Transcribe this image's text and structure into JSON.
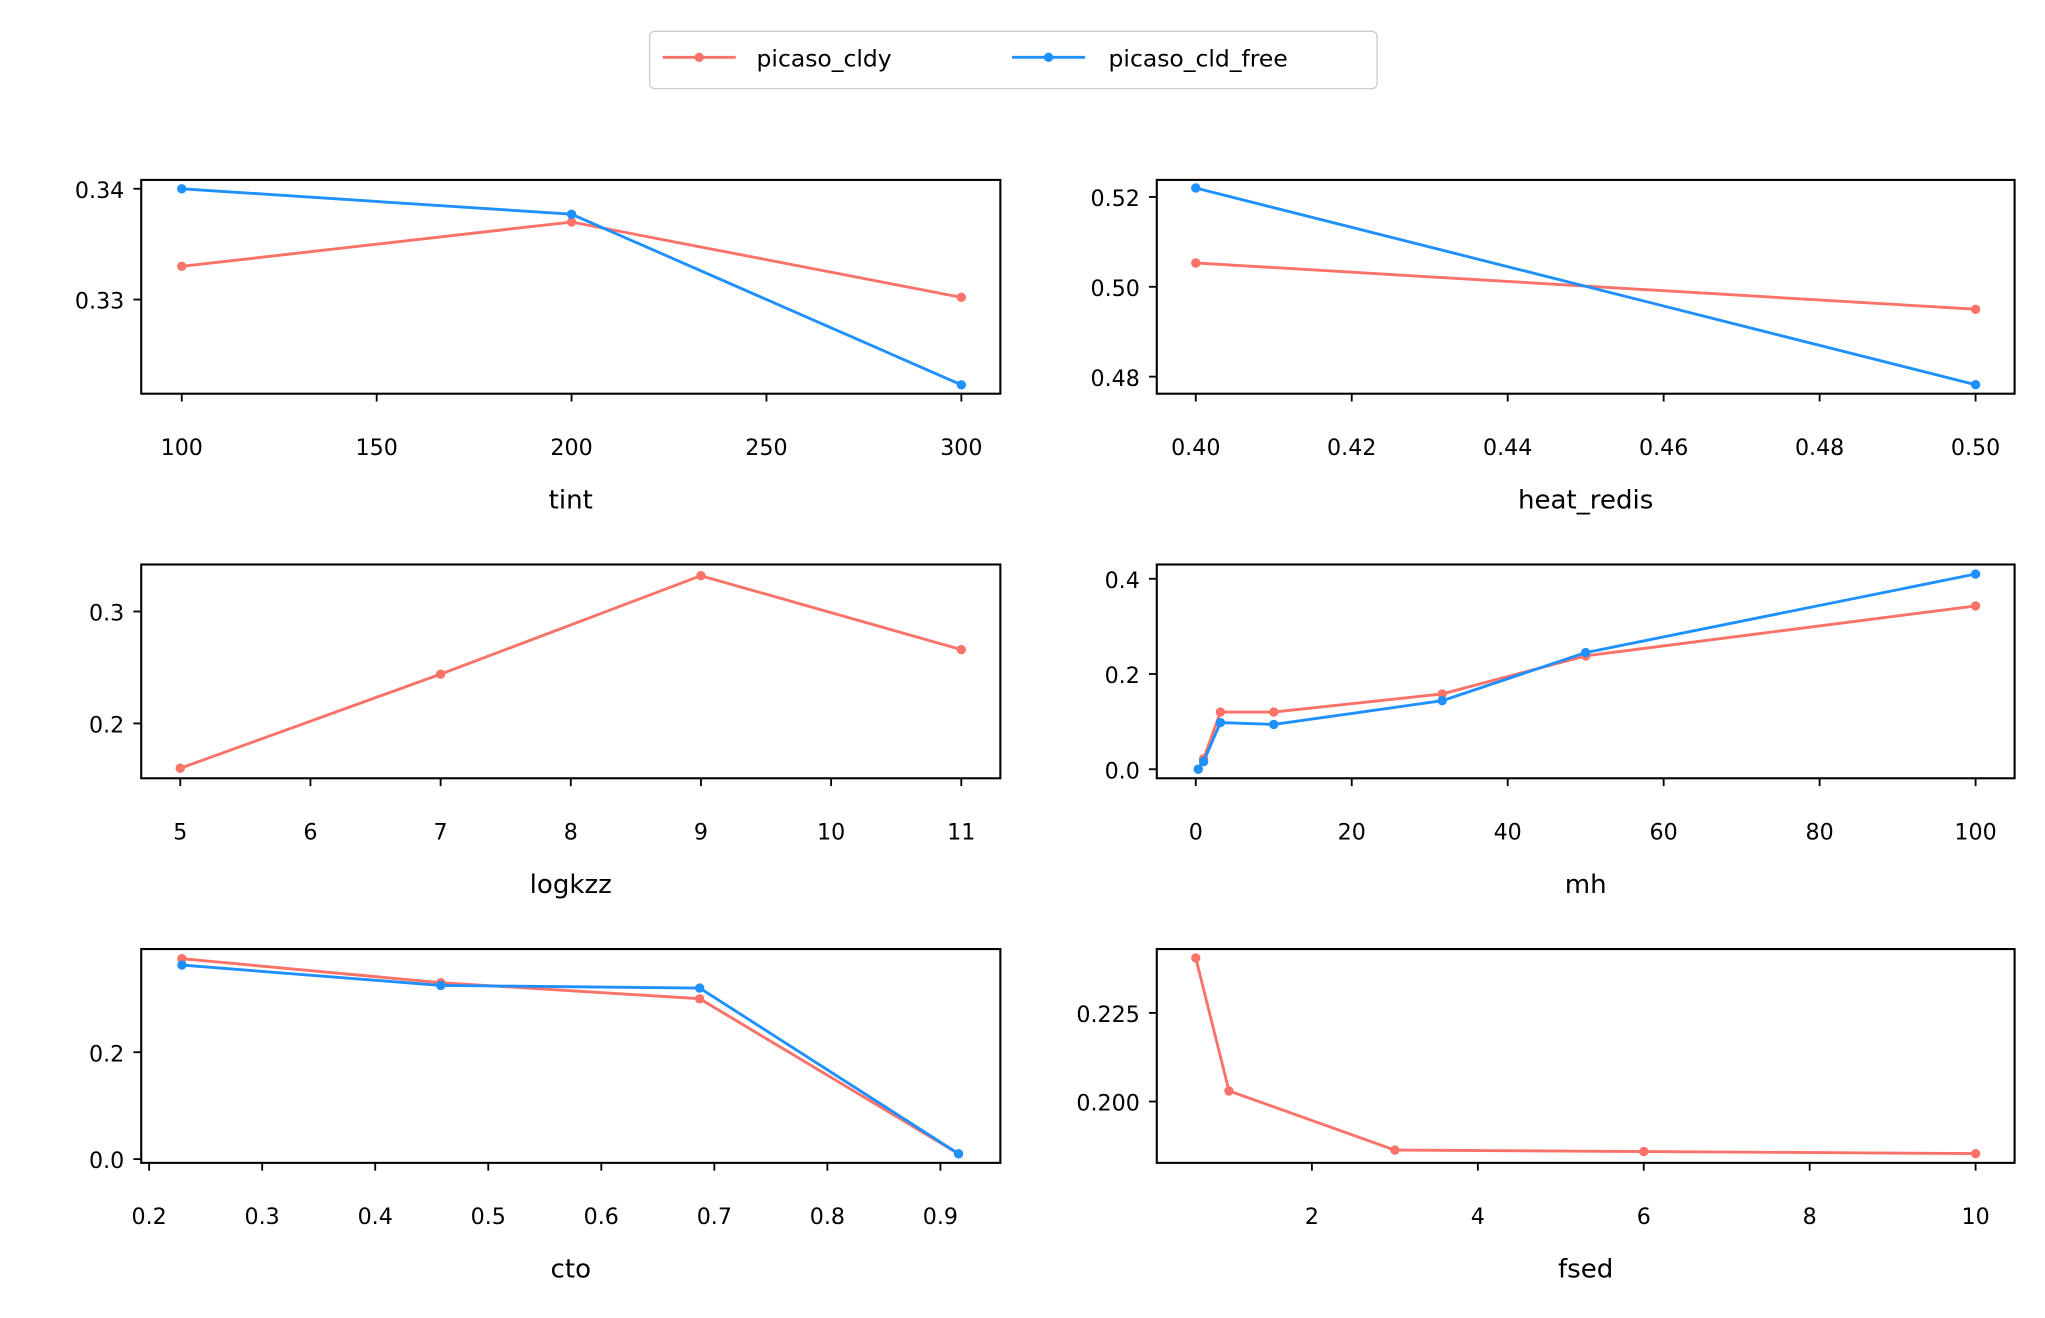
{
  "colors": {
    "picaso_cldy": "#FA7268",
    "picaso_cld_free": "#1E90FF"
  },
  "legend": {
    "position": "top-center",
    "entries": [
      "picaso_cldy",
      "picaso_cld_free"
    ]
  },
  "chart_data": [
    {
      "type": "line",
      "xlabel": "tint",
      "xlim": [
        89.6,
        310
      ],
      "ylim": [
        0.3215,
        0.3408
      ],
      "xticks": [
        100,
        150,
        200,
        250,
        300
      ],
      "xtick_labels": [
        "100",
        "150",
        "200",
        "250",
        "300"
      ],
      "yticks": [
        0.33,
        0.34
      ],
      "ytick_labels": [
        "0.33",
        "0.34"
      ],
      "series": [
        {
          "name": "picaso_cldy",
          "x": [
            100,
            200,
            300
          ],
          "y": [
            0.333,
            0.337,
            0.3302
          ]
        },
        {
          "name": "picaso_cld_free",
          "x": [
            100,
            200,
            300
          ],
          "y": [
            0.34,
            0.3377,
            0.3223
          ]
        }
      ]
    },
    {
      "type": "line",
      "xlabel": "heat_redis",
      "xlim": [
        0.395,
        0.505
      ],
      "ylim": [
        0.4762,
        0.5238
      ],
      "xticks": [
        0.4,
        0.42,
        0.44,
        0.46,
        0.48,
        0.5
      ],
      "xtick_labels": [
        "0.40",
        "0.42",
        "0.44",
        "0.46",
        "0.48",
        "0.50"
      ],
      "yticks": [
        0.48,
        0.5,
        0.52
      ],
      "ytick_labels": [
        "0.48",
        "0.50",
        "0.52"
      ],
      "series": [
        {
          "name": "picaso_cldy",
          "x": [
            0.4,
            0.5
          ],
          "y": [
            0.5053,
            0.495
          ]
        },
        {
          "name": "picaso_cld_free",
          "x": [
            0.4,
            0.5
          ],
          "y": [
            0.522,
            0.4782
          ]
        }
      ]
    },
    {
      "type": "line",
      "xlabel": "logkzz",
      "xlim": [
        4.7,
        11.3
      ],
      "ylim": [
        0.151,
        0.342
      ],
      "xticks": [
        5,
        6,
        7,
        8,
        9,
        10,
        11
      ],
      "xtick_labels": [
        "5",
        "6",
        "7",
        "8",
        "9",
        "10",
        "11"
      ],
      "yticks": [
        0.2,
        0.3
      ],
      "ytick_labels": [
        "0.2",
        "0.3"
      ],
      "series": [
        {
          "name": "picaso_cldy",
          "x": [
            5,
            7,
            9,
            11
          ],
          "y": [
            0.16,
            0.244,
            0.332,
            0.266
          ]
        }
      ]
    },
    {
      "type": "line",
      "xlabel": "mh",
      "xlim": [
        -5,
        105
      ],
      "ylim": [
        -0.019,
        0.43
      ],
      "xticks": [
        0,
        20,
        40,
        60,
        80,
        100
      ],
      "xtick_labels": [
        "0",
        "20",
        "40",
        "60",
        "80",
        "100"
      ],
      "yticks": [
        0.0,
        0.2,
        0.4
      ],
      "ytick_labels": [
        "0.0",
        "0.2",
        "0.4"
      ],
      "series": [
        {
          "name": "picaso_cldy",
          "x": [
            0.316,
            1,
            3.16,
            10,
            31.6,
            50,
            100
          ],
          "y": [
            0.0,
            0.022,
            0.12,
            0.12,
            0.158,
            0.238,
            0.343
          ]
        },
        {
          "name": "picaso_cld_free",
          "x": [
            0.316,
            1,
            3.16,
            10,
            31.6,
            50,
            100
          ],
          "y": [
            0.0,
            0.016,
            0.098,
            0.094,
            0.144,
            0.245,
            0.41
          ]
        }
      ]
    },
    {
      "type": "line",
      "xlabel": "cto",
      "xlim": [
        0.193,
        0.953
      ],
      "ylim": [
        -0.007,
        0.393
      ],
      "xticks": [
        0.2,
        0.3,
        0.4,
        0.5,
        0.6,
        0.7,
        0.8,
        0.9
      ],
      "xtick_labels": [
        "0.2",
        "0.3",
        "0.4",
        "0.5",
        "0.6",
        "0.7",
        "0.8",
        "0.9"
      ],
      "yticks": [
        0.0,
        0.2
      ],
      "ytick_labels": [
        "0.0",
        "0.2"
      ],
      "series": [
        {
          "name": "picaso_cldy",
          "x": [
            0.229,
            0.458,
            0.687,
            0.916
          ],
          "y": [
            0.375,
            0.33,
            0.3,
            0.01
          ]
        },
        {
          "name": "picaso_cld_free",
          "x": [
            0.229,
            0.458,
            0.687,
            0.916
          ],
          "y": [
            0.363,
            0.325,
            0.32,
            0.01
          ]
        }
      ]
    },
    {
      "type": "line",
      "xlabel": "fsed",
      "xlim": [
        0.13,
        10.47
      ],
      "ylim": [
        0.1827,
        0.243
      ],
      "xticks": [
        2,
        4,
        6,
        8,
        10
      ],
      "xtick_labels": [
        "2",
        "4",
        "6",
        "8",
        "10"
      ],
      "yticks": [
        0.2,
        0.225
      ],
      "ytick_labels": [
        "0.200",
        "0.225"
      ],
      "series": [
        {
          "name": "picaso_cldy",
          "x": [
            0.6,
            1,
            3,
            6,
            10
          ],
          "y": [
            0.2405,
            0.203,
            0.1863,
            0.1859,
            0.1853
          ]
        }
      ]
    }
  ]
}
